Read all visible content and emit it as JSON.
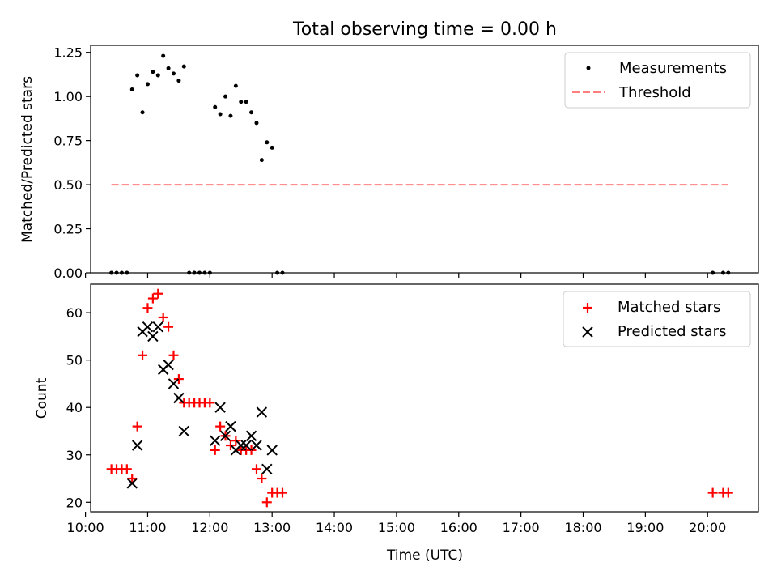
{
  "chart_data": [
    {
      "type": "scatter",
      "title": "Total observing time = 0.00 h",
      "ylabel": "Matched/Predicted stars",
      "xlabel": "",
      "xlim": [
        "10:05",
        "20:49"
      ],
      "ylim": [
        0,
        1.29
      ],
      "yticks": [
        "0.00",
        "0.25",
        "0.50",
        "0.75",
        "1.00",
        "1.25"
      ],
      "xticks": [
        "10:00",
        "11:00",
        "12:00",
        "13:00",
        "14:00",
        "15:00",
        "16:00",
        "17:00",
        "18:00",
        "19:00",
        "20:00"
      ],
      "show_xtick_labels": false,
      "grid": false,
      "legend_position": "top-right",
      "series": [
        {
          "name": "Measurements",
          "kind": "points",
          "color": "#000000",
          "points": [
            [
              "10:25",
              0.0
            ],
            [
              "10:30",
              0.0
            ],
            [
              "10:35",
              0.0
            ],
            [
              "10:40",
              0.0
            ],
            [
              "10:45",
              1.04
            ],
            [
              "10:50",
              1.12
            ],
            [
              "10:55",
              0.91
            ],
            [
              "11:00",
              1.07
            ],
            [
              "11:05",
              1.14
            ],
            [
              "11:10",
              1.12
            ],
            [
              "11:15",
              1.23
            ],
            [
              "11:20",
              1.16
            ],
            [
              "11:25",
              1.13
            ],
            [
              "11:30",
              1.09
            ],
            [
              "11:35",
              1.17
            ],
            [
              "11:40",
              0.0
            ],
            [
              "11:45",
              0.0
            ],
            [
              "11:50",
              0.0
            ],
            [
              "11:55",
              0.0
            ],
            [
              "12:00",
              0.0
            ],
            [
              "12:05",
              0.94
            ],
            [
              "12:10",
              0.9
            ],
            [
              "12:15",
              1.0
            ],
            [
              "12:20",
              0.89
            ],
            [
              "12:25",
              1.06
            ],
            [
              "12:30",
              0.97
            ],
            [
              "12:35",
              0.97
            ],
            [
              "12:40",
              0.91
            ],
            [
              "12:45",
              0.85
            ],
            [
              "12:50",
              0.64
            ],
            [
              "12:55",
              0.74
            ],
            [
              "13:00",
              0.71
            ],
            [
              "13:05",
              0.0
            ],
            [
              "13:10",
              0.0
            ],
            [
              "20:05",
              0.0
            ],
            [
              "20:15",
              0.0
            ],
            [
              "20:20",
              0.0
            ]
          ]
        },
        {
          "name": "Threshold",
          "kind": "dashed-line",
          "color": "#ff7f7f",
          "points": [
            [
              "10:25",
              0.5
            ],
            [
              "20:20",
              0.5
            ]
          ]
        }
      ]
    },
    {
      "type": "scatter",
      "title": "",
      "ylabel": "Count",
      "xlabel": "Time (UTC)",
      "xlim": [
        "10:05",
        "20:49"
      ],
      "ylim": [
        18,
        66
      ],
      "yticks": [
        "20",
        "30",
        "40",
        "50",
        "60"
      ],
      "xticks": [
        "10:00",
        "11:00",
        "12:00",
        "13:00",
        "14:00",
        "15:00",
        "16:00",
        "17:00",
        "18:00",
        "19:00",
        "20:00"
      ],
      "show_xtick_labels": true,
      "grid": false,
      "legend_position": "top-right",
      "series": [
        {
          "name": "Matched stars",
          "kind": "plus",
          "color": "#ff0000",
          "points": [
            [
              "10:25",
              27
            ],
            [
              "10:30",
              27
            ],
            [
              "10:35",
              27
            ],
            [
              "10:40",
              27
            ],
            [
              "10:45",
              25
            ],
            [
              "10:50",
              36
            ],
            [
              "10:55",
              51
            ],
            [
              "11:00",
              61
            ],
            [
              "11:05",
              63
            ],
            [
              "11:10",
              64
            ],
            [
              "11:15",
              59
            ],
            [
              "11:20",
              57
            ],
            [
              "11:25",
              51
            ],
            [
              "11:30",
              46
            ],
            [
              "11:35",
              41
            ],
            [
              "11:40",
              41
            ],
            [
              "11:45",
              41
            ],
            [
              "11:50",
              41
            ],
            [
              "11:55",
              41
            ],
            [
              "12:00",
              41
            ],
            [
              "12:05",
              31
            ],
            [
              "12:10",
              36
            ],
            [
              "12:15",
              34
            ],
            [
              "12:20",
              32
            ],
            [
              "12:25",
              33
            ],
            [
              "12:30",
              31
            ],
            [
              "12:35",
              31
            ],
            [
              "12:40",
              31
            ],
            [
              "12:45",
              27
            ],
            [
              "12:50",
              25
            ],
            [
              "12:55",
              20
            ],
            [
              "13:00",
              22
            ],
            [
              "13:05",
              22
            ],
            [
              "13:10",
              22
            ],
            [
              "20:05",
              22
            ],
            [
              "20:15",
              22
            ],
            [
              "20:20",
              22
            ]
          ]
        },
        {
          "name": "Predicted stars",
          "kind": "cross",
          "color": "#000000",
          "points": [
            [
              "10:45",
              24
            ],
            [
              "10:50",
              32
            ],
            [
              "10:55",
              56
            ],
            [
              "11:00",
              57
            ],
            [
              "11:05",
              55
            ],
            [
              "11:10",
              57
            ],
            [
              "11:15",
              48
            ],
            [
              "11:20",
              49
            ],
            [
              "11:25",
              45
            ],
            [
              "11:30",
              42
            ],
            [
              "11:35",
              35
            ],
            [
              "12:05",
              33
            ],
            [
              "12:10",
              40
            ],
            [
              "12:15",
              34
            ],
            [
              "12:20",
              36
            ],
            [
              "12:25",
              31
            ],
            [
              "12:30",
              32
            ],
            [
              "12:35",
              32
            ],
            [
              "12:40",
              34
            ],
            [
              "12:45",
              32
            ],
            [
              "12:50",
              39
            ],
            [
              "12:55",
              27
            ],
            [
              "13:00",
              31
            ]
          ]
        }
      ]
    }
  ]
}
